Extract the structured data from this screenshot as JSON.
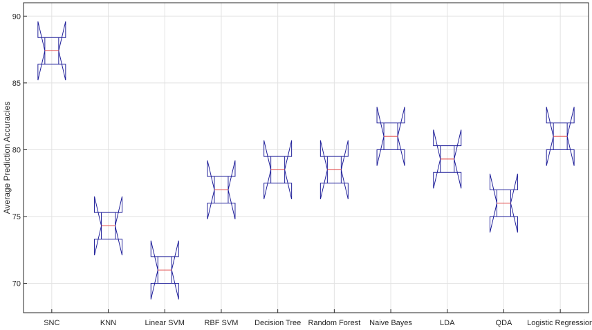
{
  "chart_data": {
    "type": "boxplot",
    "ylabel": "Average Prediction Accuracies",
    "xlabel": "",
    "title": "",
    "ylim": [
      67.8,
      91
    ],
    "yticks": [
      70,
      75,
      80,
      85,
      90
    ],
    "grid": true,
    "notched": true,
    "colors": {
      "box": "#1f1f99",
      "median": "#e03c3c",
      "grid": "#e2e2e2",
      "axis": "#262626"
    },
    "categories": [
      "SNC",
      "KNN",
      "Linear SVM",
      "RBF SVM",
      "Decision Tree",
      "Random Forest",
      "Naive Bayes",
      "LDA",
      "QDA",
      "Logistic Regression"
    ],
    "boxes": [
      {
        "q1": 86.4,
        "median": 87.4,
        "q3": 88.4,
        "notch_low": 85.2,
        "notch_high": 89.6
      },
      {
        "q1": 73.3,
        "median": 74.3,
        "q3": 75.3,
        "notch_low": 72.1,
        "notch_high": 76.5
      },
      {
        "q1": 70.0,
        "median": 71.0,
        "q3": 72.0,
        "notch_low": 68.8,
        "notch_high": 73.2
      },
      {
        "q1": 76.0,
        "median": 77.0,
        "q3": 78.0,
        "notch_low": 74.8,
        "notch_high": 79.2
      },
      {
        "q1": 77.5,
        "median": 78.5,
        "q3": 79.5,
        "notch_low": 76.3,
        "notch_high": 80.7
      },
      {
        "q1": 77.5,
        "median": 78.5,
        "q3": 79.5,
        "notch_low": 76.3,
        "notch_high": 80.7
      },
      {
        "q1": 80.0,
        "median": 81.0,
        "q3": 82.0,
        "notch_low": 78.8,
        "notch_high": 83.2
      },
      {
        "q1": 78.3,
        "median": 79.3,
        "q3": 80.3,
        "notch_low": 77.1,
        "notch_high": 81.5
      },
      {
        "q1": 75.0,
        "median": 76.0,
        "q3": 77.0,
        "notch_low": 73.8,
        "notch_high": 78.2
      },
      {
        "q1": 80.0,
        "median": 81.0,
        "q3": 82.0,
        "notch_low": 78.8,
        "notch_high": 83.2
      }
    ]
  }
}
